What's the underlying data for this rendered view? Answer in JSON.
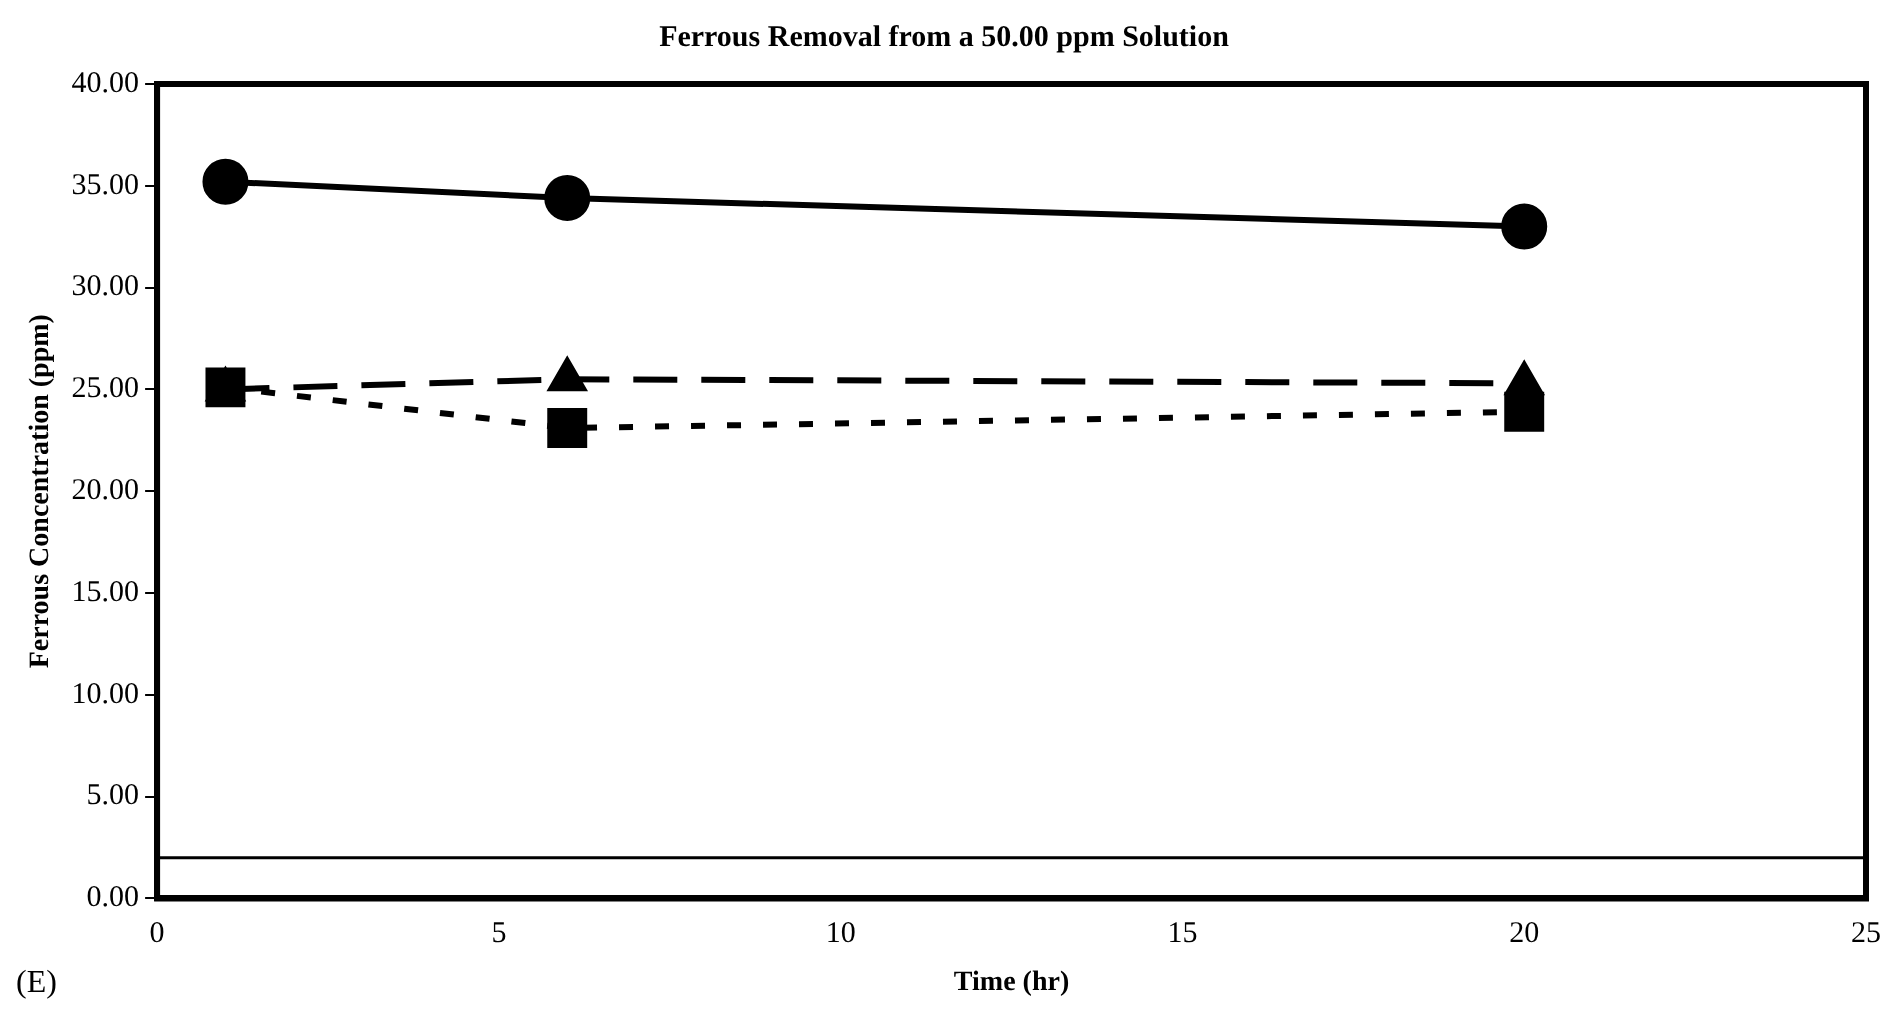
{
  "chart_data": {
    "type": "line",
    "title": "Ferrous Removal from a 50.00 ppm Solution",
    "xlabel": "Time (hr)",
    "ylabel": "Ferrous Concentration (ppm)",
    "annotations": [
      "(E)"
    ],
    "x": [
      1,
      6,
      20
    ],
    "series": [
      {
        "color": "#000000",
        "values": [
          35.2,
          34.4,
          33.0
        ],
        "marker": "circle",
        "line_style": "solid"
      },
      {
        "color": "#000000",
        "values": [
          25.0,
          25.5,
          25.3
        ],
        "marker": "triangle",
        "line_style": "dashed"
      },
      {
        "color": "#000000",
        "values": [
          25.1,
          23.1,
          23.9
        ],
        "marker": "square",
        "line_style": "dotted"
      }
    ],
    "xlim": [
      0,
      25
    ],
    "xticks": [
      0,
      5,
      10,
      15,
      20,
      25
    ],
    "ylim": [
      0,
      40
    ],
    "yticks": [
      {
        "value": 0,
        "label": "0.00"
      },
      {
        "value": 5,
        "label": "5.00"
      },
      {
        "value": 10,
        "label": "10.00"
      },
      {
        "value": 15,
        "label": "15.00"
      },
      {
        "value": 20,
        "label": "20.00"
      },
      {
        "value": 25,
        "label": "25.00"
      },
      {
        "value": 30,
        "label": "30.00"
      },
      {
        "value": 35,
        "label": "35.00"
      },
      {
        "value": 40,
        "label": "40.00"
      }
    ],
    "ref_lines": [
      {
        "axis": "y",
        "value": 2.0,
        "color": "#000000",
        "line_style": "solid"
      }
    ],
    "grid": false,
    "legend": false
  }
}
